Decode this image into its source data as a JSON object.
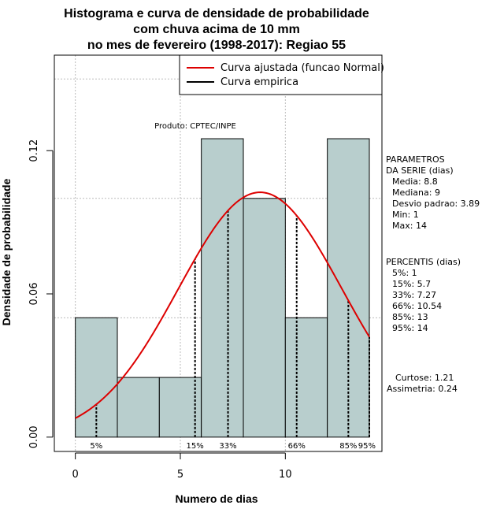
{
  "chart_data": {
    "type": "bar",
    "title_lines": [
      "Histograma e curva de densidade de probabilidade",
      "com chuva acima de 10 mm",
      "no mes de fevereiro (1998-2017): Regiao 55"
    ],
    "xlabel": "Numero de dias",
    "ylabel": "Densidade de probabilidade",
    "xlim": [
      -1,
      14.6
    ],
    "ylim": [
      -0.006,
      0.16
    ],
    "x_ticks": [
      0,
      5,
      10
    ],
    "y_ticks": [
      0.0,
      0.06,
      0.12
    ],
    "y_tick_labels": [
      "0.00",
      "0.06",
      "0.12"
    ],
    "gridlines_y": [
      0.05,
      0.1,
      0.15
    ],
    "gridlines_x": [
      0,
      5,
      10
    ],
    "bars": [
      {
        "x0": 0,
        "x1": 2,
        "density": 0.05
      },
      {
        "x0": 2,
        "x1": 4,
        "density": 0.025
      },
      {
        "x0": 4,
        "x1": 6,
        "density": 0.025
      },
      {
        "x0": 6,
        "x1": 8,
        "density": 0.125
      },
      {
        "x0": 8,
        "x1": 10,
        "density": 0.1
      },
      {
        "x0": 10,
        "x1": 12,
        "density": 0.05
      },
      {
        "x0": 12,
        "x1": 14,
        "density": 0.125
      }
    ],
    "normal_curve": {
      "mean": 8.8,
      "sd": 3.89,
      "from": 0,
      "to": 14
    },
    "percentiles": [
      {
        "label": "5%",
        "x": 1
      },
      {
        "label": "15%",
        "x": 5.7
      },
      {
        "label": "33%",
        "x": 7.27
      },
      {
        "label": "66%",
        "x": 10.54
      },
      {
        "label": "85%",
        "x": 13
      },
      {
        "label": "95%",
        "x": 14
      }
    ],
    "legend": [
      {
        "label": "Curva ajustada (funcao Normal)",
        "color": "#dd0000"
      },
      {
        "label": "Curva empirica",
        "color": "#000000"
      }
    ],
    "legend_position": "top-right",
    "credit": "Produto: CPTEC/INPE",
    "colors": {
      "bar_fill": "#b8cecd",
      "curve": "#dd0000",
      "grid": "#bbbbbb"
    }
  },
  "side_panel": {
    "params_header": [
      "PARAMETROS",
      "DA SERIE (dias)"
    ],
    "params": [
      "Media: 8.8",
      "Mediana: 9",
      "Desvio padrao: 3.89",
      "Min: 1",
      "Max: 14"
    ],
    "percentis_header": "PERCENTIS (dias)",
    "percentis": [
      "5%: 1",
      "15%: 5.7",
      "33%: 7.27",
      "66%: 10.54",
      "85%: 13",
      "95%: 14"
    ],
    "stats": [
      "Curtose: 1.21",
      "Assimetria: 0.24"
    ]
  }
}
